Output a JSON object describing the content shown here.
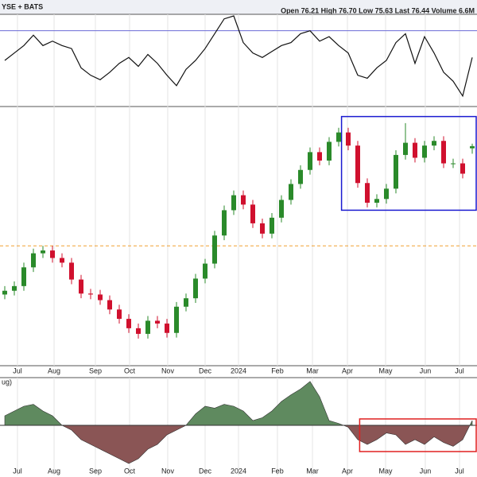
{
  "header": {
    "exchange": "YSE + BATS",
    "quote": "Open 76.21 High 76.70 Low 75.63 Last 76.44 Volume 6.6M",
    "lower_label": "ug)"
  },
  "chart_data": [
    {
      "type": "line",
      "color": "#111111",
      "ylim": [
        20,
        80
      ],
      "hline": 70,
      "hline_color": "#6b6bd6",
      "values": [
        50,
        55,
        60,
        67,
        60,
        63,
        60,
        58,
        45,
        40,
        37,
        42,
        48,
        52,
        46,
        54,
        48,
        40,
        33,
        44,
        50,
        58,
        68,
        78,
        80,
        62,
        55,
        52,
        56,
        60,
        62,
        68,
        70,
        63,
        66,
        60,
        55,
        40,
        38,
        45,
        50,
        62,
        68,
        48,
        66,
        55,
        42,
        36,
        26,
        52
      ]
    },
    {
      "type": "candlestick",
      "up_color": "#2a8a2a",
      "down_color": "#d0102e",
      "ylim": [
        53,
        80.5
      ],
      "grid": true,
      "hline": 65.8,
      "hline_color": "#f0a030",
      "box": {
        "from": 35.3,
        "low": 69.6,
        "high": 79.6,
        "color": "#1a1ad0"
      },
      "xticks": [
        {
          "value": 1.33,
          "label": "Jul"
        },
        {
          "value": 5.17,
          "label": "Aug"
        },
        {
          "value": 9.5,
          "label": "Sep"
        },
        {
          "value": 13.08,
          "label": "Oct"
        },
        {
          "value": 17.08,
          "label": "Nov"
        },
        {
          "value": 21,
          "label": "Dec"
        },
        {
          "value": 24.5,
          "label": "2024"
        },
        {
          "value": 28.58,
          "label": "Feb"
        },
        {
          "value": 32.25,
          "label": "Mar"
        },
        {
          "value": 35.92,
          "label": "Apr"
        },
        {
          "value": 39.92,
          "label": "May"
        },
        {
          "value": 44.08,
          "label": "Jun"
        },
        {
          "value": 47.67,
          "label": "Jul"
        }
      ],
      "ohlc": [
        [
          60.6,
          61.5,
          60.1,
          61.0
        ],
        [
          61.0,
          62.0,
          60.5,
          61.5
        ],
        [
          61.5,
          64.0,
          61.0,
          63.5
        ],
        [
          63.5,
          65.5,
          63.0,
          65.0
        ],
        [
          65.0,
          65.8,
          64.5,
          65.3
        ],
        [
          65.3,
          65.8,
          64.0,
          64.5
        ],
        [
          64.5,
          65.0,
          63.5,
          64.0
        ],
        [
          64.0,
          64.5,
          61.7,
          62.2
        ],
        [
          62.2,
          62.7,
          60.2,
          60.7
        ],
        [
          60.7,
          61.2,
          60.1,
          60.6
        ],
        [
          60.6,
          61.1,
          59.5,
          60.0
        ],
        [
          60.0,
          60.5,
          58.5,
          59.0
        ],
        [
          59.0,
          59.5,
          57.5,
          58.0
        ],
        [
          58.0,
          58.5,
          56.5,
          57.0
        ],
        [
          57.0,
          57.5,
          55.9,
          56.4
        ],
        [
          56.4,
          58.3,
          55.9,
          57.8
        ],
        [
          57.8,
          58.3,
          57.0,
          57.5
        ],
        [
          57.5,
          58.0,
          56.0,
          56.5
        ],
        [
          56.5,
          59.8,
          56.0,
          59.3
        ],
        [
          59.3,
          60.7,
          58.8,
          60.2
        ],
        [
          60.2,
          62.8,
          59.7,
          62.3
        ],
        [
          62.3,
          64.4,
          61.8,
          63.9
        ],
        [
          63.9,
          67.4,
          63.4,
          66.9
        ],
        [
          66.9,
          70.1,
          66.4,
          69.6
        ],
        [
          69.6,
          71.7,
          69.1,
          71.2
        ],
        [
          71.2,
          71.7,
          69.7,
          70.2
        ],
        [
          70.2,
          70.7,
          67.7,
          68.2
        ],
        [
          68.2,
          68.7,
          66.6,
          67.1
        ],
        [
          67.1,
          69.3,
          66.6,
          68.8
        ],
        [
          68.8,
          71.2,
          68.3,
          70.7
        ],
        [
          70.7,
          72.9,
          70.2,
          72.4
        ],
        [
          72.4,
          74.4,
          71.9,
          73.9
        ],
        [
          73.9,
          76.3,
          73.4,
          75.8
        ],
        [
          75.8,
          76.3,
          74.4,
          74.9
        ],
        [
          74.9,
          77.4,
          74.4,
          76.9
        ],
        [
          76.9,
          78.4,
          76.4,
          77.9
        ],
        [
          77.9,
          78.4,
          76.0,
          76.5
        ],
        [
          76.5,
          77.0,
          72.0,
          72.5
        ],
        [
          72.5,
          73.0,
          69.9,
          70.4
        ],
        [
          70.4,
          71.3,
          69.9,
          70.8
        ],
        [
          70.8,
          72.4,
          70.3,
          71.9
        ],
        [
          71.9,
          76.0,
          71.4,
          75.5
        ],
        [
          75.5,
          78.9,
          75.0,
          76.8
        ],
        [
          76.8,
          77.3,
          74.7,
          75.2
        ],
        [
          75.2,
          77.0,
          74.7,
          76.5
        ],
        [
          76.5,
          77.5,
          76.0,
          77.0
        ],
        [
          77.0,
          77.5,
          74.1,
          74.6
        ],
        [
          74.6,
          75.1,
          74.1,
          74.6
        ],
        [
          74.6,
          75.1,
          73.0,
          73.5
        ],
        [
          76.21,
          76.7,
          75.63,
          76.44
        ]
      ]
    },
    {
      "type": "area",
      "up_color": "#5f8a5f",
      "down_color": "#8a5555",
      "ylim": [
        -50,
        50
      ],
      "hline": 0,
      "hline_color": "#333333",
      "box": {
        "from": 37.2,
        "low": -27.5,
        "high": 6.7,
        "color": "#e02020"
      },
      "values": [
        10,
        15,
        20,
        22,
        15,
        10,
        0,
        -5,
        -15,
        -20,
        -25,
        -30,
        -35,
        -40,
        -35,
        -25,
        -20,
        -10,
        -5,
        0,
        12,
        20,
        18,
        22,
        20,
        15,
        5,
        8,
        15,
        25,
        32,
        38,
        46,
        30,
        5,
        2,
        -2,
        -15,
        -20,
        -15,
        -8,
        -10,
        -20,
        -15,
        -20,
        -12,
        -18,
        -22,
        -15,
        5
      ]
    }
  ]
}
